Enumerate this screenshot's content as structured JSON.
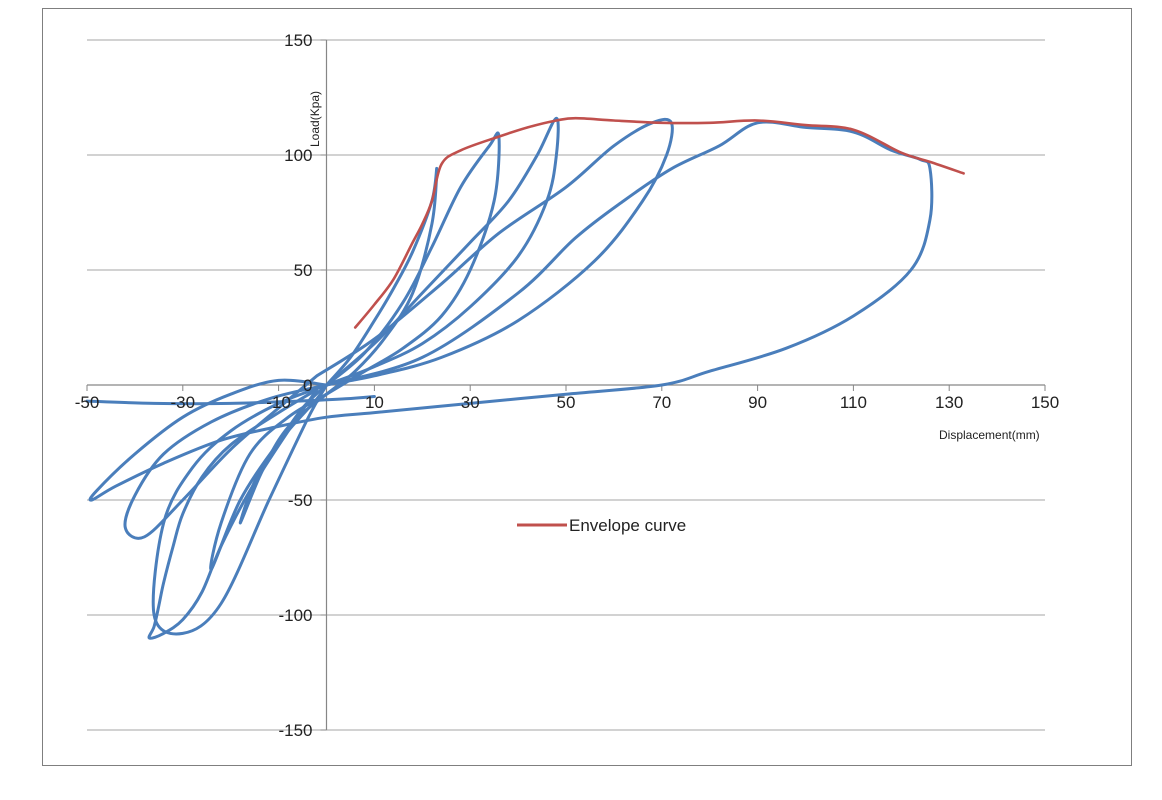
{
  "chart_data": {
    "type": "line",
    "xlabel": "Displacement(mm)",
    "ylabel": "Load(Kpa)",
    "xlim": [
      -50,
      150
    ],
    "ylim": [
      -150,
      150
    ],
    "x_ticks": [
      -50,
      -30,
      -10,
      10,
      30,
      50,
      70,
      90,
      110,
      130,
      150
    ],
    "y_ticks": [
      150,
      100,
      50,
      0,
      -50,
      -100,
      -150
    ],
    "x_tick_labels": [
      "-50",
      "-30",
      "-10",
      "10",
      "30",
      "50",
      "70",
      "90",
      "110",
      "130",
      "150"
    ],
    "y_tick_labels": [
      "150",
      "100",
      "50",
      "0",
      "-50",
      "-100",
      "-150"
    ],
    "grid": "horizontal",
    "legend_position": "center",
    "colors": {
      "hysteresis": "#4a7ebb",
      "envelope": "#c0504d",
      "grid": "#a6a6a6",
      "axis": "#868686"
    },
    "series": [
      {
        "name": "Envelope curve",
        "color": "#c0504d",
        "x": [
          6,
          10,
          14,
          18,
          20,
          22,
          24,
          28,
          36,
          42,
          48,
          52,
          60,
          70,
          80,
          90,
          100,
          110,
          120,
          126,
          133
        ],
        "y": [
          25,
          35,
          46,
          62,
          70,
          80,
          96,
          102,
          108,
          112,
          115,
          116,
          115,
          114,
          114,
          115,
          113,
          111,
          101,
          97,
          92
        ]
      }
    ],
    "hysteresis_loops": [
      {
        "x": [
          0,
          5,
          10,
          14,
          18,
          22,
          23,
          22,
          18,
          12,
          6,
          0,
          -6,
          -10,
          -14,
          -18,
          -15,
          -10,
          -5,
          0
        ],
        "y": [
          0,
          12,
          28,
          42,
          58,
          80,
          94,
          70,
          40,
          20,
          6,
          -4,
          -14,
          -24,
          -40,
          -60,
          -42,
          -25,
          -10,
          0
        ]
      },
      {
        "x": [
          0,
          8,
          16,
          22,
          28,
          34,
          36,
          35,
          30,
          24,
          16,
          8,
          0,
          -8,
          -16,
          -22,
          -24,
          -18,
          -10,
          -2,
          0
        ],
        "y": [
          0,
          14,
          36,
          60,
          86,
          104,
          108,
          80,
          50,
          30,
          16,
          6,
          -4,
          -14,
          -30,
          -60,
          -80,
          -50,
          -25,
          -6,
          0
        ]
      },
      {
        "x": [
          0,
          10,
          20,
          30,
          38,
          44,
          48,
          48,
          46,
          40,
          30,
          20,
          10,
          0,
          -10,
          -20,
          -28,
          -34,
          -36,
          -30,
          -22,
          -12,
          -4,
          0
        ],
        "y": [
          0,
          18,
          40,
          62,
          80,
          100,
          116,
          100,
          80,
          56,
          34,
          18,
          8,
          0,
          -8,
          -20,
          -36,
          -60,
          -100,
          -108,
          -95,
          -50,
          -15,
          0
        ]
      },
      {
        "x": [
          -2,
          10,
          24,
          36,
          50,
          60,
          68,
          72,
          71,
          66,
          56,
          40,
          24,
          10,
          0,
          -12,
          -24,
          -34,
          -40,
          -42,
          -38,
          -30,
          -20,
          -10,
          -2
        ],
        "y": [
          4,
          20,
          44,
          66,
          86,
          104,
          114,
          114,
          100,
          80,
          54,
          28,
          12,
          4,
          0,
          -6,
          -16,
          -30,
          -48,
          -62,
          -66,
          -50,
          -28,
          -10,
          4
        ]
      },
      {
        "x": [
          0,
          20,
          40,
          52,
          62,
          72,
          82,
          90,
          100,
          110,
          118,
          124,
          126,
          126,
          122,
          110,
          96,
          80,
          70,
          50,
          30,
          10,
          0,
          -10,
          -22,
          -34,
          -44,
          -49,
          -48,
          -40,
          -30,
          -20,
          -10,
          0
        ],
        "y": [
          0,
          12,
          40,
          64,
          80,
          94,
          104,
          114,
          112,
          110,
          102,
          98,
          94,
          72,
          50,
          30,
          16,
          6,
          0,
          -4,
          -8,
          -12,
          -14,
          -18,
          -24,
          -34,
          -44,
          -50,
          -46,
          -30,
          -14,
          -4,
          2,
          0
        ]
      },
      {
        "x": [
          -50,
          -36,
          -20,
          -6,
          4,
          10
        ],
        "y": [
          -7,
          -8,
          -8,
          -7,
          -6,
          -5
        ]
      },
      {
        "x": [
          -2,
          -10,
          -20,
          -26,
          -30,
          -32,
          -34,
          -35,
          -36,
          -37,
          -34,
          -30,
          -26,
          -22,
          -16,
          -8,
          -2
        ],
        "y": [
          -2,
          -12,
          -26,
          -40,
          -56,
          -70,
          -86,
          -96,
          -105,
          -110,
          -108,
          -102,
          -90,
          -70,
          -46,
          -20,
          -2
        ]
      }
    ],
    "legend": [
      {
        "label": "Envelope curve",
        "color": "#c0504d"
      }
    ]
  }
}
